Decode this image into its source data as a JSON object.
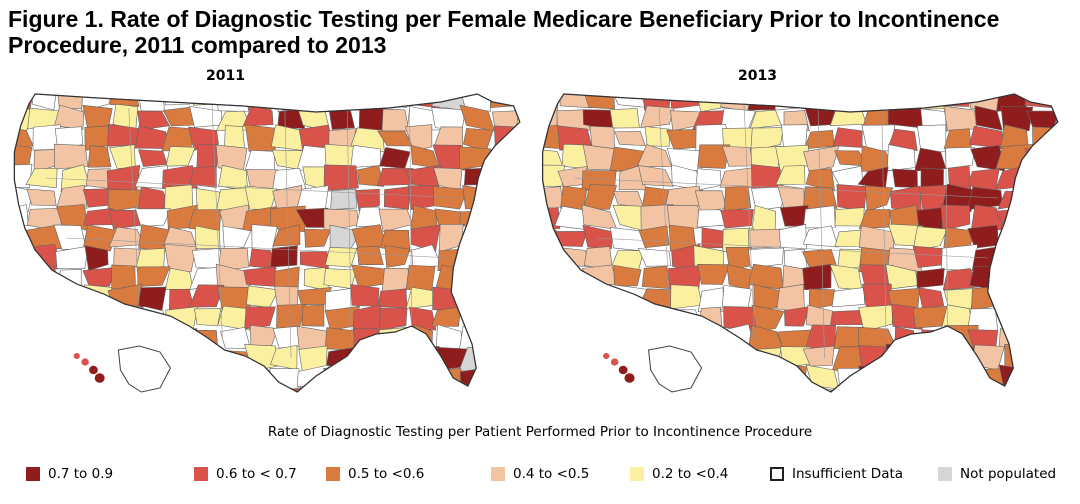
{
  "title": "Figure 1. Rate of Diagnostic Testing per Female Medicare Beneficiary Prior to Incontinence Procedure, 2011 compared to 2013",
  "maps": [
    {
      "year": "2011"
    },
    {
      "year": "2013"
    }
  ],
  "legend": {
    "title": "Rate of Diagnostic Testing per Patient Performed Prior to Incontinence Procedure",
    "items": [
      {
        "label": "0.7 to 0.9",
        "color": "#8f1d1d"
      },
      {
        "label": "0.6 to < 0.7",
        "color": "#d9534a"
      },
      {
        "label": "0.5 to <0.6",
        "color": "#d97a3e"
      },
      {
        "label": "0.4 to <0.5",
        "color": "#f2c4a4"
      },
      {
        "label": "0.2 to <0.4",
        "color": "#faf0a0"
      },
      {
        "label": "Insufficient Data",
        "color": "#ffffff"
      },
      {
        "label": "Not populated",
        "color": "#d6d6d6"
      }
    ]
  }
}
